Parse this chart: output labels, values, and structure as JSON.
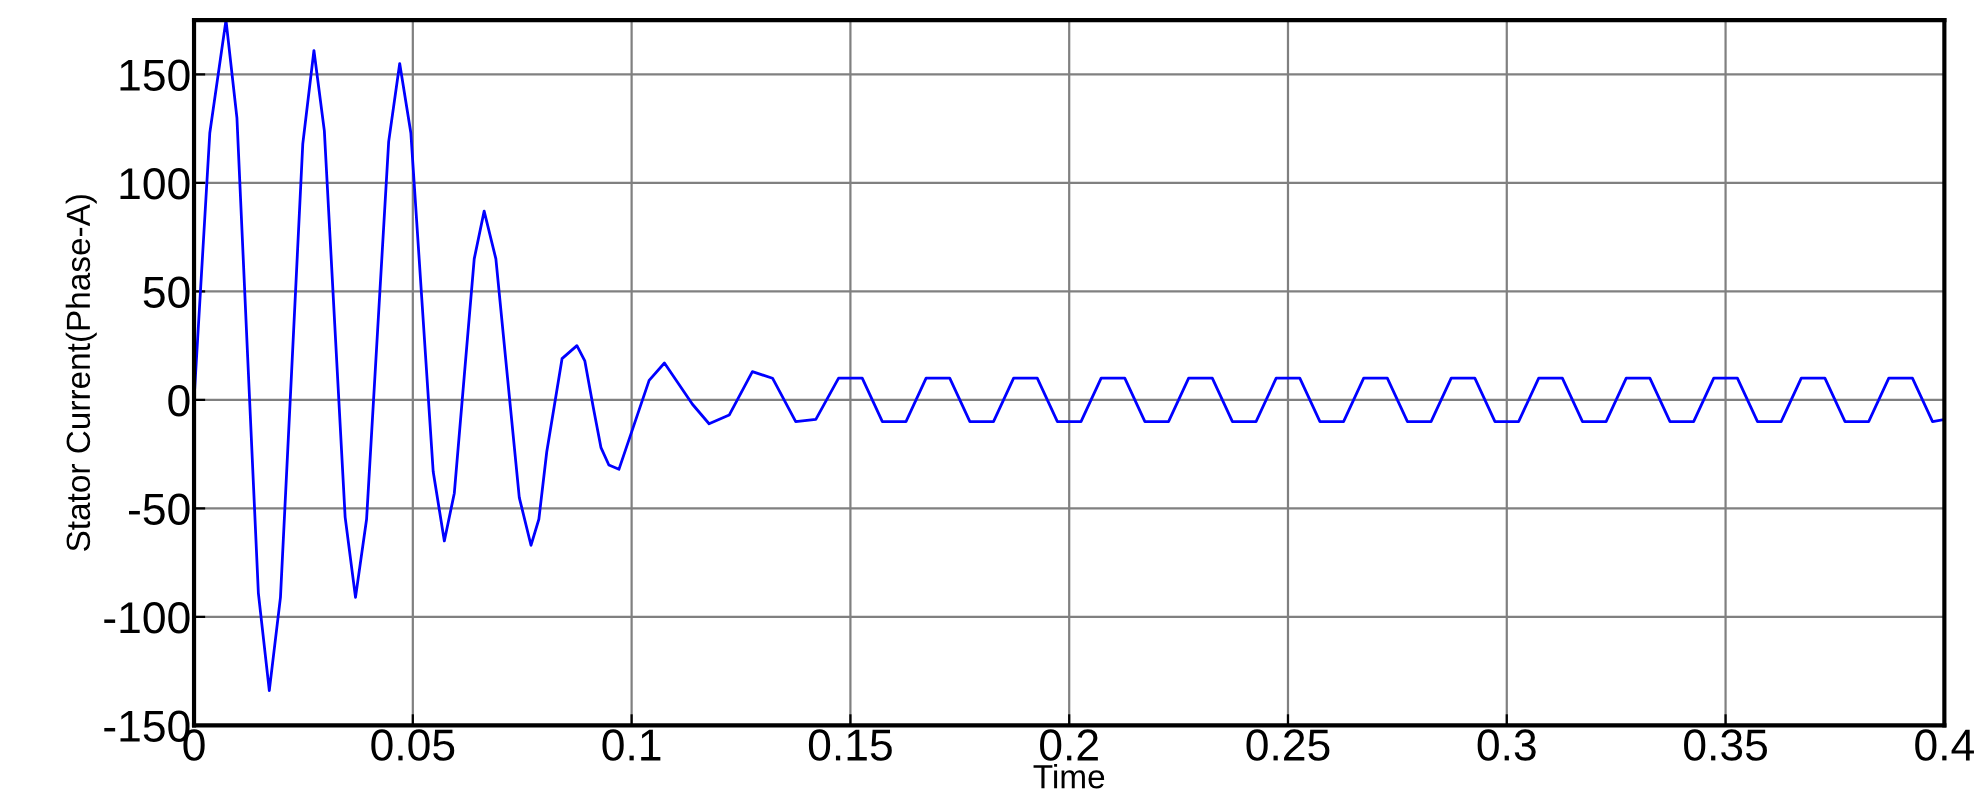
{
  "chart_data": {
    "type": "line",
    "xlabel": "Time",
    "ylabel": "Stator Current(Phase-A)",
    "xlim": [
      0,
      0.4
    ],
    "ylim": [
      -150,
      175
    ],
    "xticks": [
      0,
      0.05,
      0.1,
      0.15,
      0.2,
      0.25,
      0.3,
      0.35,
      0.4
    ],
    "yticks": [
      -150,
      -100,
      -50,
      0,
      50,
      100,
      150
    ],
    "grid": true,
    "marker": "none",
    "line_style": "solid",
    "series": [
      {
        "color": "#0000ff",
        "x": [
          0,
          0.0036,
          0.0073,
          0.0098,
          0.01225,
          0.0147,
          0.0172,
          0.01975,
          0.0223,
          0.02485,
          0.0274,
          0.02978,
          0.03215,
          0.03453,
          0.0369,
          0.03943,
          0.04195,
          0.04448,
          0.047,
          0.04955,
          0.0521,
          0.05465,
          0.0572,
          0.05948,
          0.06175,
          0.06403,
          0.0663,
          0.06898,
          0.07165,
          0.07433,
          0.077,
          0.0788,
          0.0806,
          0.0841,
          0.0875,
          0.0893,
          0.0912,
          0.093,
          0.0948,
          0.0971,
          0.104,
          0.1075,
          0.1139,
          0.1177,
          0.1223,
          0.1276,
          0.1322,
          0.1375,
          0.1421,
          0.1473,
          0.1527,
          0.1573,
          0.1627,
          0.1673,
          0.1727,
          0.1773,
          0.1827,
          0.1873,
          0.1927,
          0.1973,
          0.2027,
          0.2073,
          0.2127,
          0.2173,
          0.2227,
          0.2273,
          0.2327,
          0.2373,
          0.2427,
          0.2473,
          0.2527,
          0.2573,
          0.2627,
          0.2673,
          0.2727,
          0.2773,
          0.2827,
          0.2873,
          0.2927,
          0.2973,
          0.3027,
          0.3073,
          0.3127,
          0.3173,
          0.3227,
          0.3273,
          0.3327,
          0.3373,
          0.3427,
          0.3473,
          0.3527,
          0.3573,
          0.3627,
          0.3673,
          0.3727,
          0.3773,
          0.3827,
          0.3873,
          0.3927,
          0.3973,
          0.4
        ],
        "values": [
          0,
          123,
          175,
          130,
          20,
          -89,
          -134,
          -91,
          13,
          118,
          161,
          124,
          35,
          -54,
          -91,
          -55,
          32,
          119,
          155,
          123,
          45,
          -33,
          -65,
          -43,
          11,
          65,
          87,
          65,
          10,
          -45,
          -67,
          -55,
          -24,
          19,
          25,
          18,
          -3,
          -22,
          -30,
          -32,
          9,
          17,
          -2,
          -11,
          -7,
          13,
          10,
          -10,
          -9,
          10,
          10,
          -10,
          -10,
          10,
          10,
          -10,
          -10,
          10,
          10,
          -10,
          -10,
          10,
          10,
          -10,
          -10,
          10,
          10,
          -10,
          -10,
          10,
          10,
          -10,
          -10,
          10,
          10,
          -10,
          -10,
          10,
          10,
          -10,
          -10,
          10,
          10,
          -10,
          -10,
          10,
          10,
          -10,
          -10,
          10,
          10,
          -10,
          -10,
          10,
          10,
          -10,
          -10,
          10,
          10,
          -10,
          -9
        ]
      }
    ]
  }
}
